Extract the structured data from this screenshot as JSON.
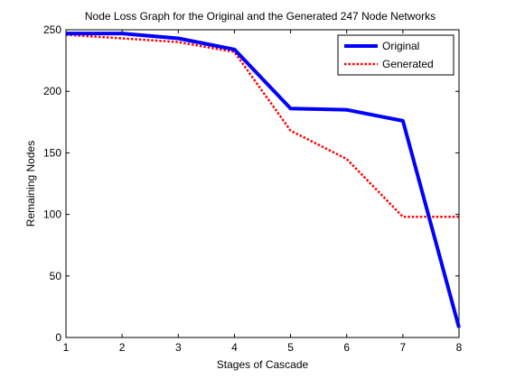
{
  "chart_data": {
    "type": "line",
    "title": "Node Loss Graph for the Original and the Generated 247 Node Networks",
    "xlabel": "Stages of Cascade",
    "ylabel": "Remaining Nodes",
    "xlim": [
      1,
      8
    ],
    "ylim": [
      0,
      250
    ],
    "xticks": [
      "1",
      "2",
      "3",
      "4",
      "5",
      "6",
      "7",
      "8"
    ],
    "yticks": [
      "0",
      "50",
      "100",
      "150",
      "200",
      "250"
    ],
    "grid": false,
    "legend_position": "top-right",
    "x": [
      1,
      2,
      3,
      4,
      5,
      6,
      7,
      8
    ],
    "series": [
      {
        "name": "Original",
        "values": [
          247,
          247,
          243,
          234,
          186,
          185,
          176,
          8
        ],
        "color": "#0000ff",
        "style": "solid"
      },
      {
        "name": "Generated",
        "values": [
          246,
          243,
          240,
          232,
          168,
          145,
          98,
          98
        ],
        "color": "#ff0000",
        "style": "dotted"
      }
    ]
  }
}
